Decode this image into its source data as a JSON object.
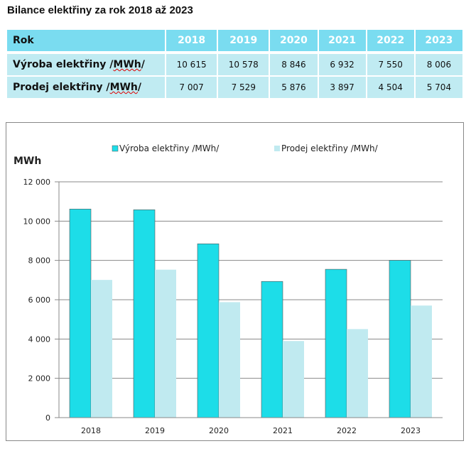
{
  "title": "Bilance elektřiny za rok 2018 až 2023",
  "table": {
    "header": {
      "label": "Rok",
      "years": [
        "2018",
        "2019",
        "2020",
        "2021",
        "2022",
        "2023"
      ]
    },
    "rows": [
      {
        "label_main": "Výroba elektřiny /",
        "label_unit": "MWh",
        "label_end": "/",
        "values": [
          "10 615",
          "10 578",
          "8 846",
          "6 932",
          "7 550",
          "8 006"
        ]
      },
      {
        "label_main": "Prodej elektřiny /",
        "label_unit": "MWh",
        "label_end": "/",
        "values": [
          "7 007",
          "7 529",
          "5 876",
          "3 897",
          "4 504",
          "5 704"
        ]
      }
    ]
  },
  "chart_data": {
    "type": "bar",
    "ylabel": "MWh",
    "categories": [
      "2018",
      "2019",
      "2020",
      "2021",
      "2022",
      "2023"
    ],
    "series": [
      {
        "name": "Výroba elektřiny /MWh/",
        "values": [
          10615,
          10578,
          8846,
          6932,
          7550,
          8006
        ],
        "color": "#1ddde8"
      },
      {
        "name": "Prodej elektřiny /MWh/",
        "values": [
          7007,
          7529,
          5876,
          3897,
          4504,
          5704
        ],
        "color": "#c0eaf0"
      }
    ],
    "ylim": [
      0,
      12000
    ],
    "yticks": [
      "0",
      "2 000",
      "4 000",
      "6 000",
      "8 000",
      "10 000",
      "12 000"
    ],
    "grid": true,
    "legend": "top"
  }
}
